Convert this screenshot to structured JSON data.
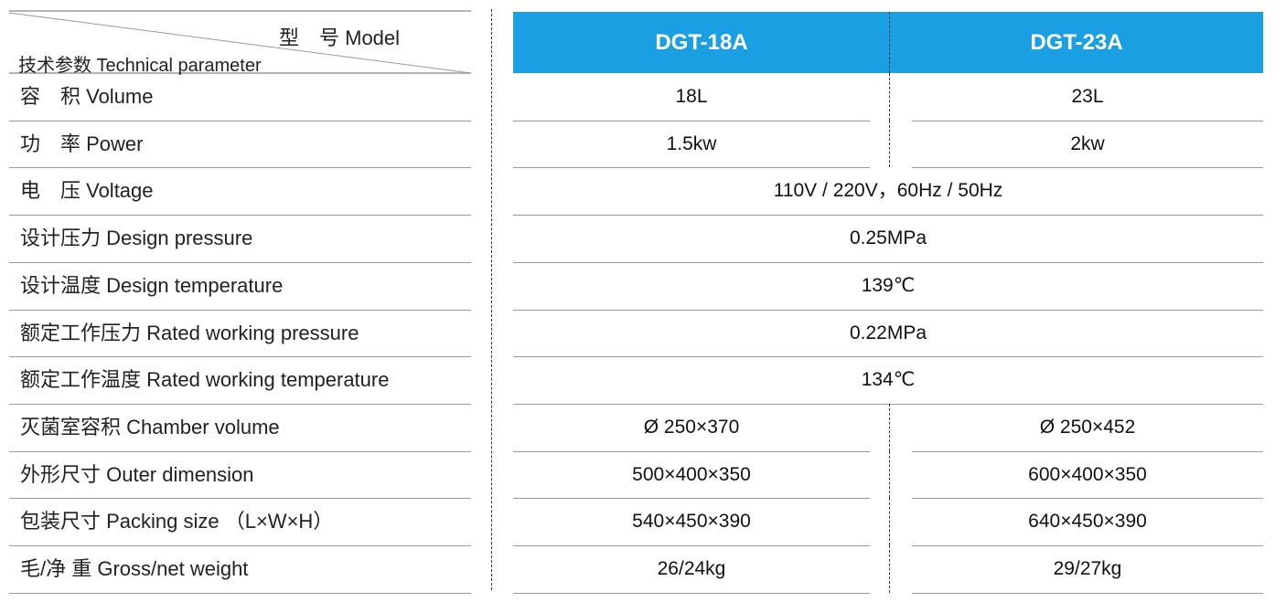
{
  "header": {
    "model_label": "型　号 Model",
    "param_label": "技术参数 Technical parameter",
    "models": [
      "DGT-18A",
      "DGT-23A"
    ]
  },
  "rows": [
    {
      "label": "容　积 Volume",
      "values": [
        "18L",
        "23L"
      ]
    },
    {
      "label": "功　率 Power",
      "values": [
        "1.5kw",
        "2kw"
      ]
    },
    {
      "label": "电　压 Voltage",
      "values": [
        "110V / 220V，60Hz / 50Hz"
      ]
    },
    {
      "label": "设计压力 Design pressure",
      "values": [
        "0.25MPa"
      ]
    },
    {
      "label": "设计温度 Design temperature",
      "values": [
        "139℃"
      ]
    },
    {
      "label": "额定工作压力  Rated working pressure",
      "values": [
        "0.22MPa"
      ]
    },
    {
      "label": "额定工作温度  Rated working temperature",
      "values": [
        "134℃"
      ]
    },
    {
      "label": "灭菌室容积  Chamber volume",
      "values": [
        "Ø 250×370",
        "Ø 250×452"
      ]
    },
    {
      "label": "外形尺寸  Outer dimension",
      "values": [
        "500×400×350",
        "600×400×350"
      ]
    },
    {
      "label": "包装尺寸 Packing size （L×W×H）",
      "values": [
        "540×450×390",
        "640×450×390"
      ]
    },
    {
      "label": "毛/净 重 Gross/net weight",
      "values": [
        "26/24kg",
        "29/27kg"
      ]
    }
  ]
}
